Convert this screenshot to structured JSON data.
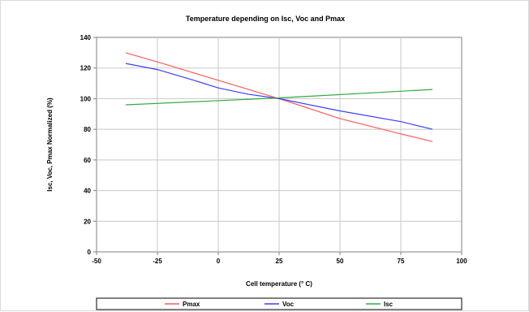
{
  "chart_data": {
    "type": "line",
    "title": "Temperature depending on Isc, Voc and Pmax",
    "xlabel": "Cell temperature (° C)",
    "ylabel": "Isc, Voc, Pmax Normalized (%)",
    "xlim": [
      -50,
      100
    ],
    "ylim": [
      0,
      140
    ],
    "xticks": [
      -50,
      -25,
      0,
      25,
      50,
      75,
      100
    ],
    "yticks": [
      0,
      20,
      40,
      60,
      80,
      100,
      120,
      140
    ],
    "grid": "horizontal",
    "legend_position": "bottom",
    "series": [
      {
        "name": "Pmax",
        "color": "#ff5a5a",
        "points": [
          [
            -38,
            130
          ],
          [
            -25,
            124
          ],
          [
            0,
            112
          ],
          [
            25,
            100
          ],
          [
            50,
            87
          ],
          [
            75,
            77
          ],
          [
            88,
            72
          ]
        ]
      },
      {
        "name": "Voc",
        "color": "#3d3dff",
        "points": [
          [
            -38,
            123
          ],
          [
            -25,
            119
          ],
          [
            -10,
            112
          ],
          [
            0,
            107
          ],
          [
            12,
            103
          ],
          [
            25,
            100
          ],
          [
            50,
            92
          ],
          [
            75,
            85
          ],
          [
            88,
            80
          ]
        ]
      },
      {
        "name": "Isc",
        "color": "#33aa44",
        "points": [
          [
            -38,
            96
          ],
          [
            25,
            100.5
          ],
          [
            88,
            106
          ]
        ]
      }
    ]
  }
}
